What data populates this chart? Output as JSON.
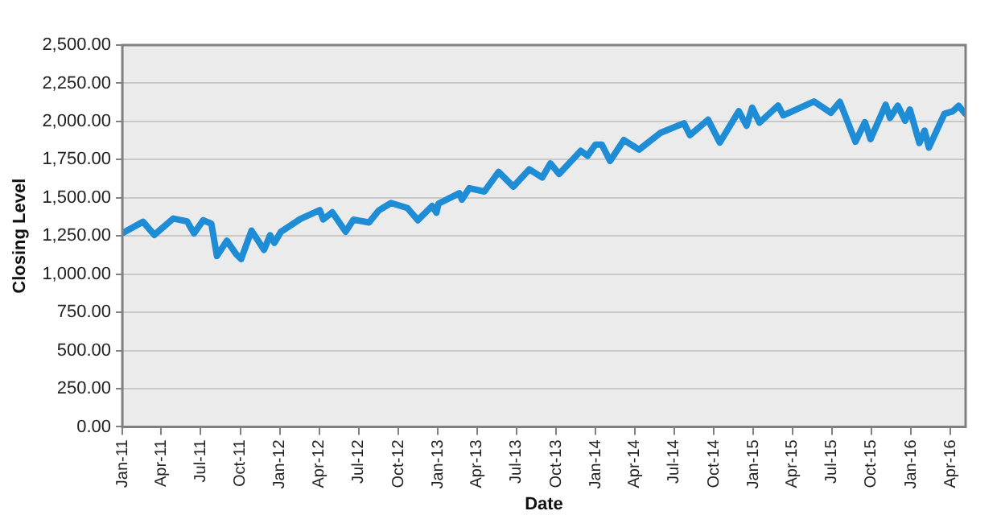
{
  "chart_data": {
    "type": "line",
    "xlabel": "Date",
    "ylabel": "Closing Level",
    "grid": "y",
    "legend": false,
    "marker": "none",
    "line_style": "solid",
    "xlim": [
      "2011-01-01",
      "2016-05-06"
    ],
    "xticks": [
      {
        "value": "2011-01-01",
        "label": "Jan-11"
      },
      {
        "value": "2011-04-01",
        "label": "Apr-11"
      },
      {
        "value": "2011-07-01",
        "label": "Jul-11"
      },
      {
        "value": "2011-10-01",
        "label": "Oct-11"
      },
      {
        "value": "2012-01-01",
        "label": "Jan-12"
      },
      {
        "value": "2012-04-01",
        "label": "Apr-12"
      },
      {
        "value": "2012-07-01",
        "label": "Jul-12"
      },
      {
        "value": "2012-10-01",
        "label": "Oct-12"
      },
      {
        "value": "2013-01-01",
        "label": "Jan-13"
      },
      {
        "value": "2013-04-01",
        "label": "Apr-13"
      },
      {
        "value": "2013-07-01",
        "label": "Jul-13"
      },
      {
        "value": "2013-10-01",
        "label": "Oct-13"
      },
      {
        "value": "2014-01-01",
        "label": "Jan-14"
      },
      {
        "value": "2014-04-01",
        "label": "Apr-14"
      },
      {
        "value": "2014-07-01",
        "label": "Jul-14"
      },
      {
        "value": "2014-10-01",
        "label": "Oct-14"
      },
      {
        "value": "2015-01-01",
        "label": "Jan-15"
      },
      {
        "value": "2015-04-01",
        "label": "Apr-15"
      },
      {
        "value": "2015-07-01",
        "label": "Jul-15"
      },
      {
        "value": "2015-10-01",
        "label": "Oct-15"
      },
      {
        "value": "2016-01-01",
        "label": "Jan-16"
      },
      {
        "value": "2016-04-01",
        "label": "Apr-16"
      }
    ],
    "ylim": [
      0,
      2500
    ],
    "yticks": [
      {
        "value": 0,
        "label": "0.00"
      },
      {
        "value": 250,
        "label": "250.00"
      },
      {
        "value": 500,
        "label": "500.00"
      },
      {
        "value": 750,
        "label": "750.00"
      },
      {
        "value": 1000,
        "label": "1,000.00"
      },
      {
        "value": 1250,
        "label": "1,250.00"
      },
      {
        "value": 1500,
        "label": "1,500.00"
      },
      {
        "value": 1750,
        "label": "1,750.00"
      },
      {
        "value": 2000,
        "label": "2,000.00"
      },
      {
        "value": 2250,
        "label": "2,250.00"
      },
      {
        "value": 2500,
        "label": "2,500.00"
      }
    ],
    "x": [
      "2011-01-03",
      "2011-01-18",
      "2011-02-18",
      "2011-03-16",
      "2011-04-29",
      "2011-05-31",
      "2011-06-16",
      "2011-07-07",
      "2011-07-26",
      "2011-08-08",
      "2011-08-31",
      "2011-09-22",
      "2011-10-03",
      "2011-10-27",
      "2011-11-25",
      "2011-12-09",
      "2011-12-19",
      "2012-01-03",
      "2012-02-17",
      "2012-04-02",
      "2012-04-10",
      "2012-05-01",
      "2012-06-01",
      "2012-06-19",
      "2012-07-25",
      "2012-08-17",
      "2012-09-14",
      "2012-10-22",
      "2012-11-15",
      "2012-12-18",
      "2012-12-28",
      "2013-01-02",
      "2013-02-19",
      "2013-02-25",
      "2013-03-14",
      "2013-04-18",
      "2013-05-21",
      "2013-06-24",
      "2013-07-31",
      "2013-08-30",
      "2013-09-18",
      "2013-10-08",
      "2013-11-27",
      "2013-12-13",
      "2013-12-31",
      "2014-01-15",
      "2014-02-03",
      "2014-03-07",
      "2014-04-11",
      "2014-05-30",
      "2014-07-24",
      "2014-08-07",
      "2014-09-18",
      "2014-10-15",
      "2014-11-28",
      "2014-12-16",
      "2014-12-29",
      "2015-01-15",
      "2015-02-27",
      "2015-03-11",
      "2015-05-21",
      "2015-06-29",
      "2015-07-20",
      "2015-08-25",
      "2015-09-16",
      "2015-09-29",
      "2015-11-03",
      "2015-11-13",
      "2015-12-01",
      "2015-12-18",
      "2015-12-29",
      "2016-01-20",
      "2016-02-01",
      "2016-02-11",
      "2016-03-18",
      "2016-04-06",
      "2016-04-20",
      "2016-05-05"
    ],
    "series": [
      {
        "color": "#1f8dd6",
        "values": [
          1271,
          1295,
          1343,
          1257,
          1364,
          1345,
          1267,
          1353,
          1331,
          1119,
          1219,
          1129,
          1099,
          1285,
          1159,
          1255,
          1205,
          1277,
          1361,
          1419,
          1358,
          1405,
          1278,
          1357,
          1338,
          1418,
          1466,
          1433,
          1353,
          1446,
          1402,
          1462,
          1530,
          1488,
          1563,
          1541,
          1669,
          1573,
          1686,
          1633,
          1725,
          1656,
          1807,
          1775,
          1848,
          1848,
          1741,
          1878,
          1815,
          1924,
          1988,
          1910,
          2011,
          1862,
          2067,
          1972,
          2090,
          1992,
          2104,
          2040,
          2131,
          2057,
          2128,
          1867,
          1995,
          1884,
          2109,
          2023,
          2103,
          2005,
          2078,
          1859,
          1940,
          1829,
          2050,
          2066,
          2102,
          2051
        ]
      }
    ]
  }
}
